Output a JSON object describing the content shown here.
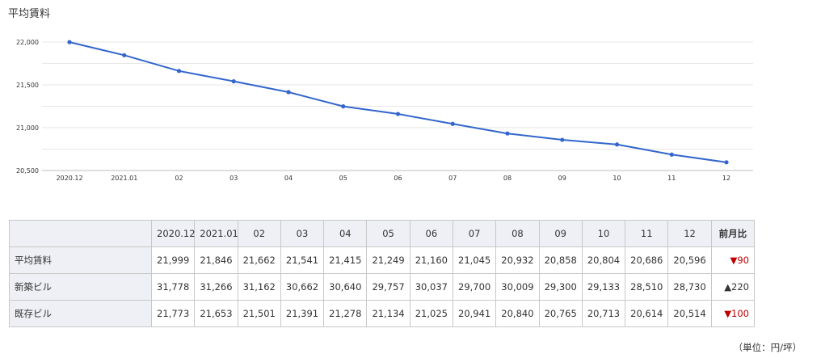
{
  "chart_data": {
    "type": "line",
    "title": "平均賃料",
    "categories": [
      "2020.12",
      "2021.01",
      "02",
      "03",
      "04",
      "05",
      "06",
      "07",
      "08",
      "09",
      "10",
      "11",
      "12"
    ],
    "series": [
      {
        "values": [
          21999,
          21846,
          21662,
          21541,
          21415,
          21249,
          21160,
          21045,
          20932,
          20858,
          20804,
          20686,
          20596
        ]
      }
    ],
    "yticks": [
      "22,000",
      "21,500",
      "21,000",
      "20,500"
    ],
    "ylim": [
      20500,
      22000
    ],
    "grid": true,
    "legend": "none",
    "line_color": "#3366cc"
  },
  "table": {
    "headers": [
      "2020.12",
      "2021.01",
      "02",
      "03",
      "04",
      "05",
      "06",
      "07",
      "08",
      "09",
      "10",
      "11",
      "12"
    ],
    "diff_header": "前月比",
    "rows": [
      {
        "label": "平均賃料",
        "values": [
          "21,999",
          "21,846",
          "21,662",
          "21,541",
          "21,415",
          "21,249",
          "21,160",
          "21,045",
          "20,932",
          "20,858",
          "20,804",
          "20,686",
          "20,596"
        ],
        "diff": "▼90",
        "diff_dir": "down"
      },
      {
        "label": "新築ビル",
        "values": [
          "31,778",
          "31,266",
          "31,162",
          "30,662",
          "30,640",
          "29,757",
          "30,037",
          "29,700",
          "30,009",
          "29,300",
          "29,133",
          "28,510",
          "28,730"
        ],
        "diff": "▲220",
        "diff_dir": "up"
      },
      {
        "label": "既存ビル",
        "values": [
          "21,773",
          "21,653",
          "21,501",
          "21,391",
          "21,278",
          "21,134",
          "21,025",
          "20,941",
          "20,840",
          "20,765",
          "20,713",
          "20,614",
          "20,514"
        ],
        "diff": "▼100",
        "diff_dir": "down"
      }
    ]
  },
  "unit": "（単位：円/坪）"
}
